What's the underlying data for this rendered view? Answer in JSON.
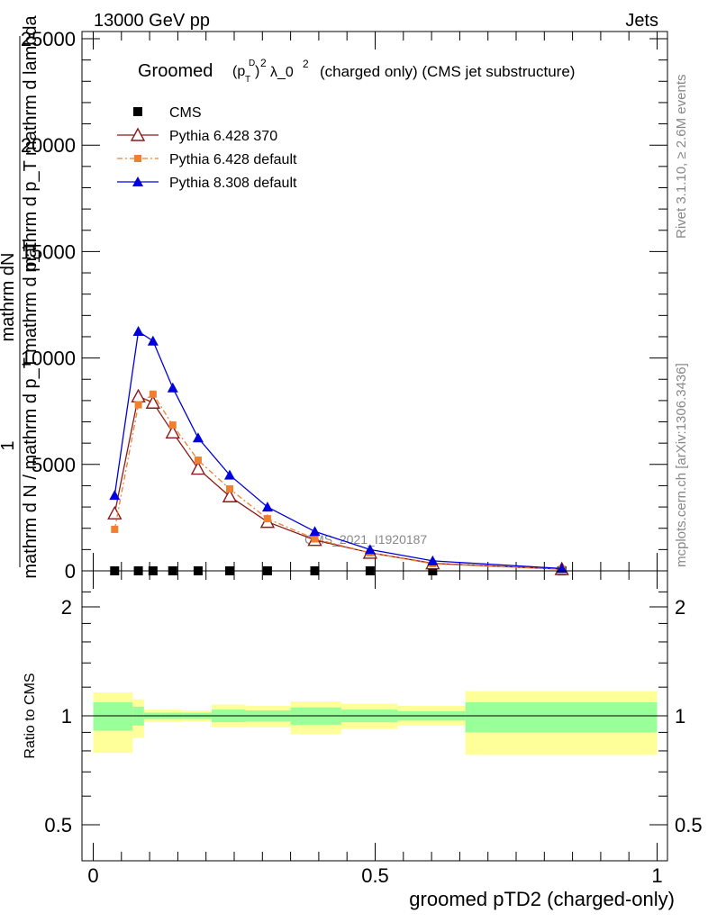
{
  "header": {
    "energy_label": "13000 GeV pp",
    "process_label": "Jets"
  },
  "side_labels": {
    "rivet": "Rivet 3.1.10, ≥ 2.6M events",
    "mcplots": "mcplots.cern.ch [arXiv:1306.3436]"
  },
  "chart_data": [
    {
      "type": "line",
      "panel": "main",
      "title": "Groomed (p_T^D)^2 λ_0^2 (charged only) (CMS jet substructure)",
      "title_parts": {
        "pre": "Groomed",
        "p": "(p",
        "sup_d": "D",
        "sub_t": "T",
        "close": ")",
        "sup2": "2",
        "lam": "λ_0",
        "sup3": "2",
        "post": "(charged only) (CMS jet substructure)"
      },
      "ylabel_num": "mathrm dN",
      "ylabel_den": "mathrm d p_T mathrm d lambda",
      "ylabel_lower_num": "1",
      "ylabel_lower_den": "mathrm d N / mathrm d p_T mathrm d p_T",
      "ylabel_sup": "2",
      "ylabel_sup_T": "T",
      "ylim": [
        0,
        25500
      ],
      "yticks": [
        0,
        5000,
        10000,
        15000,
        20000,
        25000
      ],
      "yticklabels": [
        "0",
        "5000",
        "10000",
        "15000",
        "20000",
        "25000"
      ],
      "watermark": "CMS_2021_I1920187",
      "legend_position": "top-left",
      "series": [
        {
          "name": "CMS",
          "color": "#000000",
          "marker": "square",
          "x": [
            0.038,
            0.08,
            0.106,
            0.141,
            0.186,
            0.242,
            0.309,
            0.393,
            0.491,
            0.602,
            0.831
          ],
          "y": [
            0,
            0,
            0,
            0,
            0,
            0,
            0,
            0,
            0,
            0,
            0
          ]
        },
        {
          "name": "Pythia 6.428 370",
          "color": "#8b1a1a",
          "marker": "triangle-open",
          "x": [
            0.038,
            0.08,
            0.106,
            0.141,
            0.186,
            0.242,
            0.309,
            0.393,
            0.491,
            0.602,
            0.831
          ],
          "y": [
            2700,
            8200,
            7900,
            6500,
            4800,
            3500,
            2300,
            1450,
            850,
            350,
            80
          ]
        },
        {
          "name": "Pythia 6.428 default",
          "color": "#f08030",
          "marker": "square-small",
          "x": [
            0.038,
            0.08,
            0.106,
            0.141,
            0.186,
            0.242,
            0.309,
            0.393,
            0.491,
            0.602,
            0.831
          ],
          "y": [
            1950,
            7800,
            8300,
            6850,
            5200,
            3850,
            2450,
            1500,
            850,
            330,
            75
          ]
        },
        {
          "name": "Pythia 8.308 default",
          "color": "#0000dd",
          "marker": "triangle-filled",
          "x": [
            0.038,
            0.08,
            0.106,
            0.141,
            0.186,
            0.242,
            0.309,
            0.393,
            0.491,
            0.602,
            0.831
          ],
          "y": [
            3550,
            11250,
            10800,
            8600,
            6250,
            4500,
            3000,
            1850,
            1000,
            470,
            110
          ]
        }
      ]
    },
    {
      "type": "area",
      "panel": "ratio",
      "ylabel": "Ratio to CMS",
      "xlabel": "groomed pTD2 (charged-only)",
      "xlim": [
        0,
        1
      ],
      "xticks": [
        0,
        0.5,
        1
      ],
      "xticklabels": [
        "0",
        "0.5",
        "1"
      ],
      "ylim": [
        0.4,
        2.3
      ],
      "yticks": [
        0.5,
        1,
        2
      ],
      "yticklabels": [
        "0.5",
        "1",
        "2"
      ],
      "colors": {
        "outer_band": "#ffff99",
        "inner_band": "#99ff99"
      },
      "bins": [
        {
          "lo": 0.0,
          "hi": 0.07,
          "outer": [
            0.79,
            1.16
          ],
          "inner": [
            0.91,
            1.09
          ]
        },
        {
          "lo": 0.07,
          "hi": 0.09,
          "outer": [
            0.87,
            1.11
          ],
          "inner": [
            0.94,
            1.06
          ]
        },
        {
          "lo": 0.09,
          "hi": 0.12,
          "outer": [
            0.96,
            1.04
          ],
          "inner": [
            0.98,
            1.02
          ]
        },
        {
          "lo": 0.12,
          "hi": 0.16,
          "outer": [
            0.96,
            1.04
          ],
          "inner": [
            0.98,
            1.02
          ]
        },
        {
          "lo": 0.16,
          "hi": 0.21,
          "outer": [
            0.965,
            1.035
          ],
          "inner": [
            0.98,
            1.02
          ]
        },
        {
          "lo": 0.21,
          "hi": 0.27,
          "outer": [
            0.93,
            1.075
          ],
          "inner": [
            0.96,
            1.04
          ]
        },
        {
          "lo": 0.27,
          "hi": 0.35,
          "outer": [
            0.93,
            1.065
          ],
          "inner": [
            0.965,
            1.035
          ]
        },
        {
          "lo": 0.35,
          "hi": 0.44,
          "outer": [
            0.89,
            1.095
          ],
          "inner": [
            0.945,
            1.055
          ]
        },
        {
          "lo": 0.44,
          "hi": 0.54,
          "outer": [
            0.92,
            1.08
          ],
          "inner": [
            0.96,
            1.04
          ]
        },
        {
          "lo": 0.54,
          "hi": 0.66,
          "outer": [
            0.94,
            1.065
          ],
          "inner": [
            0.97,
            1.03
          ]
        },
        {
          "lo": 0.66,
          "hi": 1.0,
          "outer": [
            0.78,
            1.17
          ],
          "inner": [
            0.9,
            1.09
          ]
        }
      ]
    }
  ]
}
